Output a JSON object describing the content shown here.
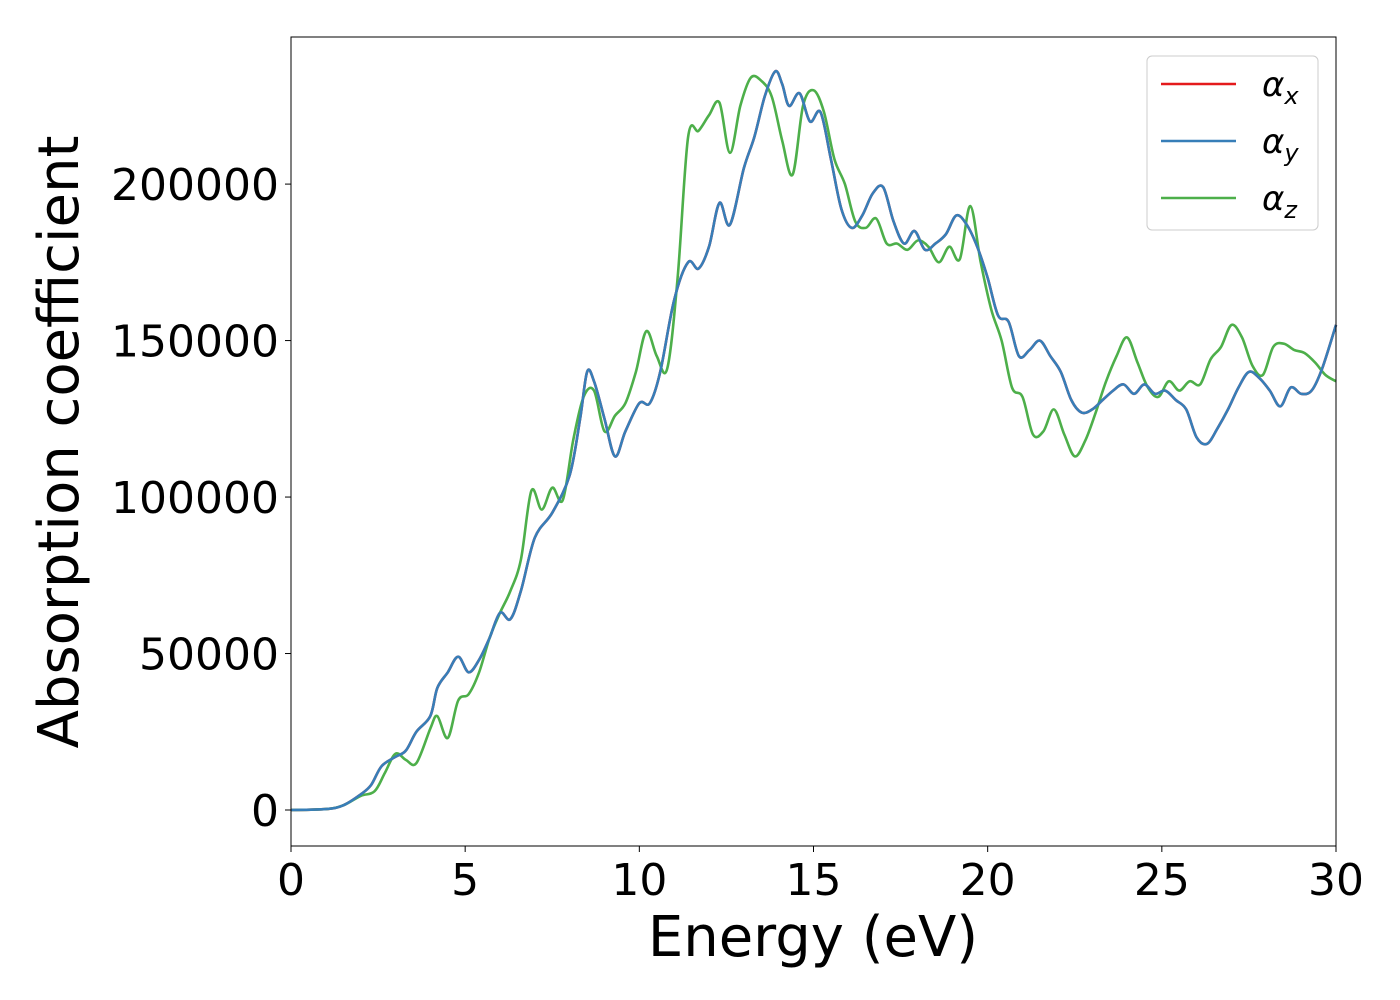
{
  "chart_data": {
    "type": "line",
    "xlabel": "Energy (eV)",
    "ylabel": "Absorption coefficient",
    "xlim": [
      0,
      30
    ],
    "ylim": [
      -11500,
      247000
    ],
    "xticks": [
      0,
      5,
      10,
      15,
      20,
      25,
      30
    ],
    "xtick_labels": [
      "0",
      "5",
      "10",
      "15",
      "20",
      "25",
      "30"
    ],
    "yticks": [
      0,
      50000,
      100000,
      150000,
      200000
    ],
    "ytick_labels": [
      "0",
      "50000",
      "100000",
      "150000",
      "200000"
    ],
    "grid": false,
    "legend_position": "top-right",
    "series": [
      {
        "name": "α_x",
        "legend_main": "α",
        "legend_sub": "x",
        "color": "#e41a1c",
        "x": [
          0,
          1,
          1.5,
          2,
          2.3,
          2.6,
          3,
          3.3,
          3.6,
          4,
          4.2,
          4.5,
          4.8,
          5.1,
          5.4,
          5.7,
          6,
          6.3,
          6.6,
          7,
          7.5,
          8,
          8.3,
          8.5,
          8.7,
          9,
          9.3,
          9.6,
          10,
          10.3,
          10.6,
          11,
          11.4,
          11.7,
          12,
          12.3,
          12.6,
          13,
          13.3,
          13.6,
          13.9,
          14.1,
          14.3,
          14.6,
          14.9,
          15.2,
          15.5,
          15.8,
          16.1,
          16.4,
          16.7,
          17,
          17.3,
          17.6,
          17.9,
          18.2,
          18.5,
          18.8,
          19.1,
          19.4,
          19.7,
          20,
          20.3,
          20.6,
          20.9,
          21.2,
          21.5,
          21.8,
          22.1,
          22.4,
          22.7,
          23,
          23.3,
          23.6,
          23.9,
          24.2,
          24.5,
          24.8,
          25.1,
          25.4,
          25.7,
          26,
          26.3,
          26.6,
          26.9,
          27.2,
          27.5,
          27.8,
          28.1,
          28.4,
          28.7,
          29,
          29.3,
          29.6,
          30
        ],
        "y": [
          0,
          300,
          1500,
          5000,
          8000,
          14000,
          17000,
          19000,
          25000,
          30000,
          39000,
          44000,
          49000,
          44000,
          48000,
          55000,
          63000,
          61000,
          70000,
          87000,
          95000,
          107000,
          125000,
          140000,
          137000,
          125000,
          113000,
          121000,
          130000,
          130000,
          140000,
          163000,
          175000,
          173000,
          180000,
          194000,
          187000,
          205000,
          215000,
          228000,
          236000,
          232000,
          225000,
          229000,
          220000,
          223000,
          208000,
          192000,
          186000,
          190000,
          197000,
          199000,
          188000,
          181000,
          185000,
          179000,
          181000,
          184000,
          190000,
          187000,
          180000,
          170000,
          158000,
          156000,
          145000,
          147000,
          150000,
          145000,
          140000,
          131000,
          127000,
          128000,
          131000,
          134000,
          136000,
          133000,
          136000,
          133000,
          134000,
          131000,
          128000,
          119000,
          117000,
          122000,
          128000,
          135000,
          140000,
          138000,
          134000,
          129000,
          135000,
          133000,
          134000,
          141000,
          155000
        ]
      },
      {
        "name": "α_y",
        "legend_main": "α",
        "legend_sub": "y",
        "color": "#377eb8",
        "x": [
          0,
          1,
          1.5,
          2,
          2.3,
          2.6,
          3,
          3.3,
          3.6,
          4,
          4.2,
          4.5,
          4.8,
          5.1,
          5.4,
          5.7,
          6,
          6.3,
          6.6,
          7,
          7.5,
          8,
          8.3,
          8.5,
          8.7,
          9,
          9.3,
          9.6,
          10,
          10.3,
          10.6,
          11,
          11.4,
          11.7,
          12,
          12.3,
          12.6,
          13,
          13.3,
          13.6,
          13.9,
          14.1,
          14.3,
          14.6,
          14.9,
          15.2,
          15.5,
          15.8,
          16.1,
          16.4,
          16.7,
          17,
          17.3,
          17.6,
          17.9,
          18.2,
          18.5,
          18.8,
          19.1,
          19.4,
          19.7,
          20,
          20.3,
          20.6,
          20.9,
          21.2,
          21.5,
          21.8,
          22.1,
          22.4,
          22.7,
          23,
          23.3,
          23.6,
          23.9,
          24.2,
          24.5,
          24.8,
          25.1,
          25.4,
          25.7,
          26,
          26.3,
          26.6,
          26.9,
          27.2,
          27.5,
          27.8,
          28.1,
          28.4,
          28.7,
          29,
          29.3,
          29.6,
          30
        ],
        "y": [
          0,
          300,
          1500,
          5000,
          8000,
          14000,
          17000,
          19000,
          25000,
          30000,
          39000,
          44000,
          49000,
          44000,
          48000,
          55000,
          63000,
          61000,
          70000,
          87000,
          95000,
          107000,
          125000,
          140000,
          137000,
          125000,
          113000,
          121000,
          130000,
          130000,
          140000,
          163000,
          175000,
          173000,
          180000,
          194000,
          187000,
          205000,
          215000,
          228000,
          236000,
          232000,
          225000,
          229000,
          220000,
          223000,
          208000,
          192000,
          186000,
          190000,
          197000,
          199000,
          188000,
          181000,
          185000,
          179000,
          181000,
          184000,
          190000,
          187000,
          180000,
          170000,
          158000,
          156000,
          145000,
          147000,
          150000,
          145000,
          140000,
          131000,
          127000,
          128000,
          131000,
          134000,
          136000,
          133000,
          136000,
          133000,
          134000,
          131000,
          128000,
          119000,
          117000,
          122000,
          128000,
          135000,
          140000,
          138000,
          134000,
          129000,
          135000,
          133000,
          134000,
          141000,
          155000
        ]
      },
      {
        "name": "α_z",
        "legend_main": "α",
        "legend_sub": "z",
        "color": "#4daf4a",
        "x": [
          0,
          1,
          1.5,
          2,
          2.4,
          2.7,
          3,
          3.3,
          3.6,
          4,
          4.2,
          4.5,
          4.8,
          5.1,
          5.4,
          5.7,
          6,
          6.3,
          6.6,
          6.9,
          7.2,
          7.5,
          7.8,
          8.1,
          8.4,
          8.7,
          9,
          9.3,
          9.6,
          9.9,
          10.2,
          10.5,
          10.8,
          11.1,
          11.4,
          11.7,
          12,
          12.3,
          12.6,
          12.9,
          13.2,
          13.5,
          13.8,
          14.1,
          14.4,
          14.7,
          15,
          15.3,
          15.6,
          15.9,
          16.2,
          16.5,
          16.8,
          17.1,
          17.4,
          17.7,
          18,
          18.3,
          18.6,
          18.9,
          19.2,
          19.5,
          19.8,
          20.1,
          20.4,
          20.7,
          21,
          21.3,
          21.6,
          21.9,
          22.2,
          22.5,
          22.8,
          23.1,
          23.4,
          23.7,
          24,
          24.3,
          24.6,
          24.9,
          25.2,
          25.5,
          25.8,
          26.1,
          26.4,
          26.7,
          27,
          27.3,
          27.6,
          27.9,
          28.2,
          28.5,
          28.8,
          29.1,
          29.4,
          29.7,
          30
        ],
        "y": [
          0,
          300,
          1500,
          4500,
          6000,
          12000,
          18000,
          16000,
          15000,
          26000,
          30000,
          23000,
          35000,
          37000,
          44000,
          55000,
          63000,
          70000,
          80000,
          102000,
          96000,
          103000,
          99000,
          118000,
          132000,
          134000,
          121000,
          126000,
          130000,
          140000,
          153000,
          145000,
          141000,
          170000,
          215000,
          217000,
          222000,
          226000,
          210000,
          225000,
          234000,
          233000,
          228000,
          214000,
          203000,
          225000,
          230000,
          223000,
          208000,
          200000,
          188000,
          186000,
          189000,
          181000,
          181000,
          179000,
          182000,
          180000,
          175000,
          180000,
          176000,
          193000,
          175000,
          160000,
          150000,
          135000,
          132000,
          120000,
          121000,
          128000,
          120000,
          113000,
          118000,
          127000,
          137000,
          145000,
          151000,
          143000,
          135000,
          132000,
          137000,
          134000,
          137000,
          136000,
          144000,
          148000,
          155000,
          151000,
          142000,
          139000,
          148000,
          149000,
          147000,
          146000,
          143000,
          139000,
          137000
        ]
      }
    ]
  }
}
